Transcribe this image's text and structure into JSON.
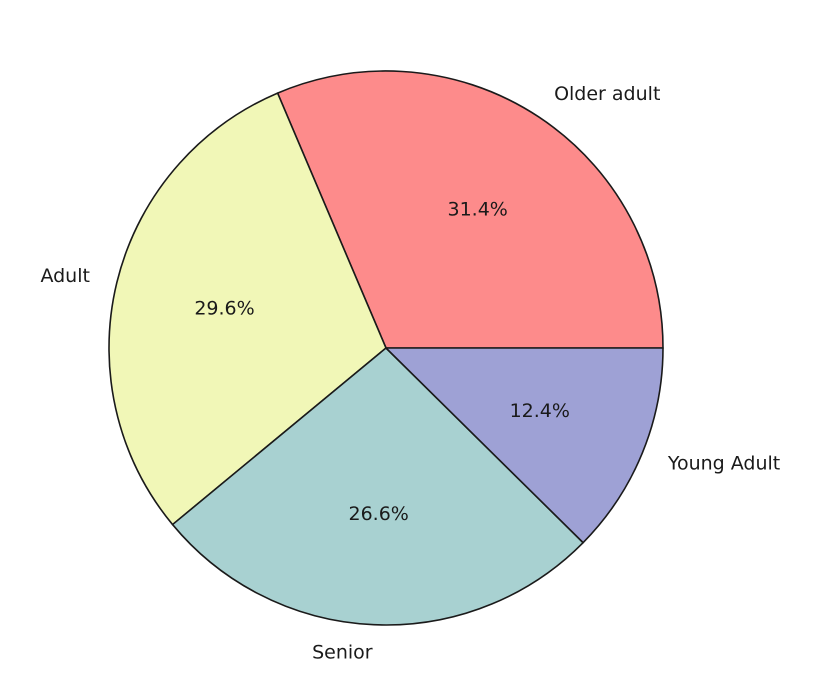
{
  "chart_data": {
    "type": "pie",
    "title": "",
    "legend": "none",
    "slices": [
      {
        "label": "Older adult",
        "value": 31.4,
        "pct_label": "31.4%",
        "color": "#fd8b8b"
      },
      {
        "label": "Adult",
        "value": 29.6,
        "pct_label": "29.6%",
        "color": "#f1f7b7"
      },
      {
        "label": "Senior",
        "value": 26.6,
        "pct_label": "26.6%",
        "color": "#a8d1d1"
      },
      {
        "label": "Young Adult",
        "value": 12.4,
        "pct_label": "12.4%",
        "color": "#9ea1d5"
      }
    ]
  }
}
